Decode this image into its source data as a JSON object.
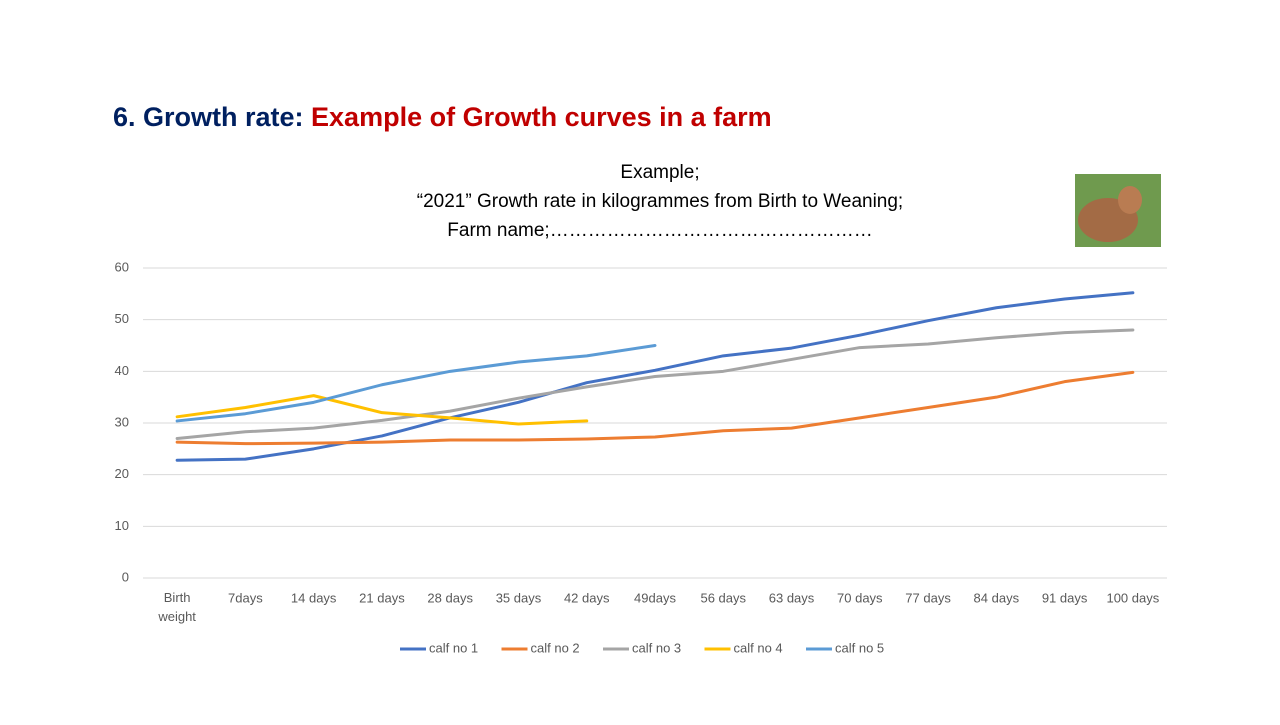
{
  "header": {
    "title_prefix": "6. Growth rate: ",
    "title_highlight": "Example of Growth curves in a farm"
  },
  "chart_data": {
    "type": "line",
    "title_lines": [
      "Example;",
      "“2021” Growth rate in kilogrammes  from Birth to Weaning;",
      "Farm name;……………………………………………"
    ],
    "categories": [
      "Birth weight",
      "7days",
      "14 days",
      "21 days",
      "28 days",
      "35 days",
      "42 days",
      "49days",
      "56 days",
      "63 days",
      "70 days",
      "77 days",
      "84 days",
      "91 days",
      "100 days"
    ],
    "series": [
      {
        "name": "calf no 1",
        "color": "#4472c4",
        "values": [
          22.8,
          23,
          25,
          27.5,
          31,
          34,
          37.8,
          40.2,
          43,
          44.5,
          47,
          49.8,
          52.3,
          54,
          55.2
        ]
      },
      {
        "name": "calf no 2",
        "color": "#ed7d31",
        "values": [
          26.3,
          26,
          26.1,
          26.3,
          26.7,
          26.7,
          26.9,
          27.3,
          28.5,
          29,
          31,
          33,
          35,
          38,
          39.8
        ]
      },
      {
        "name": "calf no 3",
        "color": "#a5a5a5",
        "values": [
          27,
          28.3,
          29,
          30.5,
          32.3,
          34.8,
          37,
          39,
          40,
          42.3,
          44.6,
          45.3,
          46.5,
          47.5,
          48
        ]
      },
      {
        "name": "calf no 4",
        "color": "#ffc000",
        "values": [
          31.2,
          33,
          35.3,
          32,
          31,
          29.8,
          30.4,
          null,
          null,
          null,
          null,
          null,
          null,
          null,
          null
        ]
      },
      {
        "name": "calf no 5",
        "color": "#5b9bd5",
        "values": [
          30.4,
          31.8,
          34,
          37.4,
          40,
          41.8,
          43,
          45,
          null,
          null,
          null,
          null,
          null,
          null,
          null
        ]
      }
    ],
    "ylim": [
      0,
      60
    ],
    "yticks": [
      0,
      10,
      20,
      30,
      40,
      50,
      60
    ],
    "grid": true,
    "legend": "bottom"
  }
}
